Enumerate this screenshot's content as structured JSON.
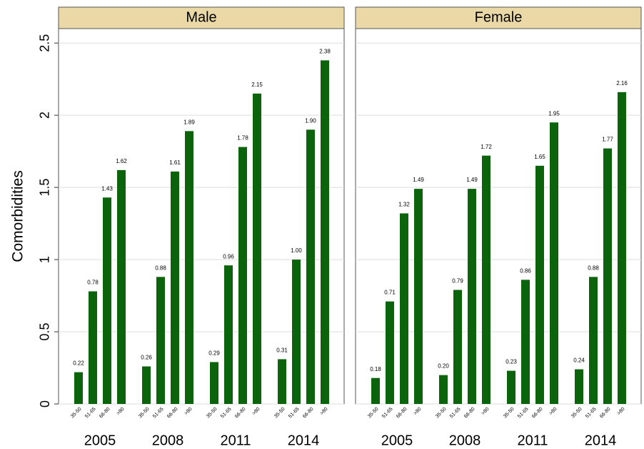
{
  "chart_data": [
    {
      "type": "bar",
      "title": "Male",
      "y_label": "Comorbidities",
      "color": "#0b640b",
      "ylim": [
        0,
        2.6
      ],
      "yticks": [
        0,
        0.5,
        1,
        1.5,
        2,
        2.5
      ],
      "grid": true,
      "groups": [
        "2005",
        "2008",
        "2011",
        "2014"
      ],
      "categories": [
        "35-50",
        "51-65",
        "66-80",
        ">80",
        "35-50",
        "51-65",
        "66-80",
        ">80",
        "35-50",
        "51-65",
        "66-80",
        ">80",
        "35-50",
        "51-65",
        "66-80",
        ">80"
      ],
      "values": [
        0.22,
        0.78,
        1.43,
        1.62,
        0.26,
        0.88,
        1.61,
        1.89,
        0.29,
        0.96,
        1.78,
        2.15,
        0.31,
        1.0,
        1.9,
        2.38
      ],
      "value_labels": [
        "0.22",
        "0.78",
        "1.43",
        "1.62",
        "0.26",
        "0.88",
        "1.61",
        "1.89",
        "0.29",
        "0.96",
        "1.78",
        "2.15",
        "0.31",
        "1.00",
        "1.90",
        "2.38"
      ]
    },
    {
      "type": "bar",
      "title": "Female",
      "color": "#0b640b",
      "ylim": [
        0,
        2.6
      ],
      "grid": true,
      "groups": [
        "2005",
        "2008",
        "2011",
        "2014"
      ],
      "categories": [
        "35-50",
        "51-65",
        "66-80",
        ">80",
        "35-50",
        "51-65",
        "66-80",
        ">80",
        "35-50",
        "51-65",
        "66-80",
        ">80",
        "35-50",
        "51-65",
        "66-80",
        ">80"
      ],
      "values": [
        0.18,
        0.71,
        1.32,
        1.49,
        0.2,
        0.79,
        1.49,
        1.72,
        0.23,
        0.86,
        1.65,
        1.95,
        0.24,
        0.88,
        1.77,
        2.16
      ],
      "value_labels": [
        "0.18",
        "0.71",
        "1.32",
        "1.49",
        "0.20",
        "0.79",
        "1.49",
        "1.72",
        "0.23",
        "0.86",
        "1.65",
        "1.95",
        "0.24",
        "0.88",
        "1.77",
        "2.16"
      ]
    }
  ]
}
